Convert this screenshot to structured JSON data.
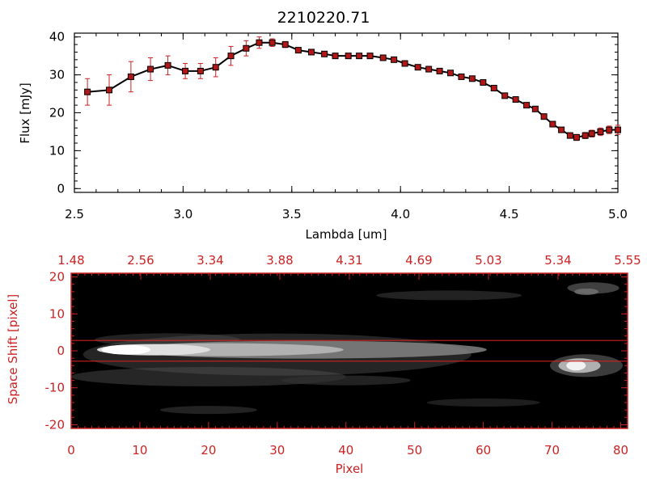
{
  "title": "2210220.71",
  "colors": {
    "axis_black": "#000000",
    "accent_red": "#cc2222",
    "marker_red": "#b01818",
    "image_bg": "#000000"
  },
  "chart_data": [
    {
      "type": "line",
      "title": "2210220.71",
      "xlabel": "Lambda [um]",
      "ylabel": "Flux [mJy]",
      "xlim": [
        2.5,
        5.0
      ],
      "ylim": [
        -1,
        41
      ],
      "xticks": [
        "2.5",
        "3.0",
        "3.5",
        "4.0",
        "4.5",
        "5.0"
      ],
      "yticks": [
        "0",
        "10",
        "20",
        "30",
        "40"
      ],
      "series": [
        {
          "x": [
            2.56,
            2.66,
            2.76,
            2.85,
            2.93,
            3.01,
            3.08,
            3.15,
            3.22,
            3.29,
            3.35,
            3.41,
            3.47,
            3.53,
            3.59,
            3.65,
            3.7,
            3.76,
            3.81,
            3.86,
            3.92,
            3.97,
            4.02,
            4.08,
            4.13,
            4.18,
            4.23,
            4.28,
            4.33,
            4.38,
            4.43,
            4.48,
            4.53,
            4.58,
            4.62,
            4.66,
            4.7,
            4.74,
            4.78,
            4.81,
            4.85,
            4.88,
            4.92,
            4.96,
            5.0
          ],
          "y": [
            25.5,
            26.0,
            29.5,
            31.5,
            32.5,
            31.0,
            31.0,
            32.0,
            35.0,
            37.0,
            38.5,
            38.5,
            38.0,
            36.5,
            36.0,
            35.5,
            35.0,
            35.0,
            35.0,
            35.0,
            34.5,
            34.0,
            33.0,
            32.0,
            31.5,
            31.0,
            30.5,
            29.5,
            29.0,
            28.0,
            26.5,
            24.5,
            23.5,
            22.0,
            21.0,
            19.0,
            17.0,
            15.5,
            14.0,
            13.5,
            14.0,
            14.5,
            15.0,
            15.5,
            15.5
          ],
          "err": [
            3.5,
            4.0,
            4.0,
            3.0,
            2.5,
            2.0,
            2.0,
            2.5,
            2.5,
            2.0,
            1.5,
            1.0,
            0.8,
            0.6,
            0.5,
            0.5,
            0.5,
            0.5,
            0.5,
            0.5,
            0.5,
            0.5,
            0.5,
            0.5,
            0.5,
            0.5,
            0.5,
            0.5,
            0.5,
            0.5,
            0.5,
            0.5,
            0.5,
            0.5,
            0.6,
            0.6,
            0.6,
            0.6,
            0.7,
            0.8,
            0.8,
            0.9,
            1.0,
            1.0,
            1.2
          ]
        }
      ]
    },
    {
      "type": "heatmap",
      "xlabel": "Pixel",
      "ylabel": "Space Shift [pixel]",
      "xlim": [
        0,
        81
      ],
      "ylim": [
        -21,
        21
      ],
      "xticks": [
        "0",
        "10",
        "20",
        "30",
        "40",
        "50",
        "60",
        "70",
        "80"
      ],
      "yticks": [
        "-20",
        "-10",
        "0",
        "10",
        "20"
      ],
      "top_ticks": [
        "1.48",
        "2.56",
        "3.34",
        "3.88",
        "4.31",
        "4.69",
        "5.03",
        "5.34",
        "5.55"
      ],
      "extraction_window": [
        -2.8,
        2.8
      ],
      "sources": [
        {
          "label": "main trace",
          "x_from": 3,
          "x_to": 64,
          "y_center": 0.3,
          "peak_x": 8
        },
        {
          "label": "secondary source",
          "x_center": 74,
          "y_center": -4
        }
      ]
    }
  ]
}
